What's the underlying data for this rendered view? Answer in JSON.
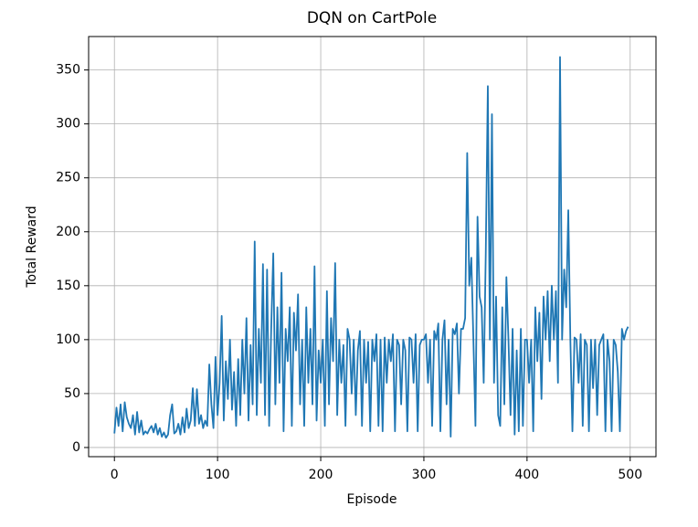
{
  "chart_data": {
    "type": "line",
    "title": "DQN on CartPole",
    "xlabel": "Episode",
    "ylabel": "Total Reward",
    "x": [
      0,
      2,
      4,
      6,
      8,
      10,
      12,
      14,
      16,
      18,
      20,
      22,
      24,
      26,
      28,
      30,
      32,
      34,
      36,
      38,
      40,
      42,
      44,
      46,
      48,
      50,
      52,
      54,
      56,
      58,
      60,
      62,
      64,
      66,
      68,
      70,
      72,
      74,
      76,
      78,
      80,
      82,
      84,
      86,
      88,
      90,
      92,
      94,
      96,
      98,
      100,
      102,
      104,
      106,
      108,
      110,
      112,
      114,
      116,
      118,
      120,
      122,
      124,
      126,
      128,
      130,
      132,
      134,
      136,
      138,
      140,
      142,
      144,
      146,
      148,
      150,
      152,
      154,
      156,
      158,
      160,
      162,
      164,
      166,
      168,
      170,
      172,
      174,
      176,
      178,
      180,
      182,
      184,
      186,
      188,
      190,
      192,
      194,
      196,
      198,
      200,
      202,
      204,
      206,
      208,
      210,
      212,
      214,
      216,
      218,
      220,
      222,
      224,
      226,
      228,
      230,
      232,
      234,
      236,
      238,
      240,
      242,
      244,
      246,
      248,
      250,
      252,
      254,
      256,
      258,
      260,
      262,
      264,
      266,
      268,
      270,
      272,
      274,
      276,
      278,
      280,
      282,
      284,
      286,
      288,
      290,
      292,
      294,
      296,
      298,
      300,
      302,
      304,
      306,
      308,
      310,
      312,
      314,
      316,
      318,
      320,
      322,
      324,
      326,
      328,
      330,
      332,
      334,
      336,
      338,
      340,
      342,
      344,
      346,
      348,
      350,
      352,
      354,
      356,
      358,
      360,
      362,
      364,
      366,
      368,
      370,
      372,
      374,
      376,
      378,
      380,
      382,
      384,
      386,
      388,
      390,
      392,
      394,
      396,
      398,
      400,
      402,
      404,
      406,
      408,
      410,
      412,
      414,
      416,
      418,
      420,
      422,
      424,
      426,
      428,
      430,
      432,
      434,
      436,
      438,
      440,
      442,
      444,
      446,
      448,
      450,
      452,
      454,
      456,
      458,
      460,
      462,
      464,
      466,
      468,
      470,
      472,
      474,
      476,
      478,
      480,
      482,
      484,
      486,
      488,
      490,
      492,
      494,
      496,
      498
    ],
    "values": [
      13,
      37,
      20,
      40,
      15,
      42,
      28,
      22,
      18,
      30,
      12,
      33,
      14,
      25,
      12,
      15,
      13,
      17,
      20,
      14,
      22,
      12,
      18,
      10,
      14,
      9,
      12,
      30,
      40,
      13,
      15,
      22,
      12,
      28,
      14,
      36,
      18,
      25,
      55,
      20,
      54,
      22,
      30,
      18,
      25,
      20,
      77,
      40,
      18,
      84,
      30,
      60,
      122,
      25,
      80,
      45,
      100,
      35,
      70,
      20,
      82,
      30,
      100,
      50,
      120,
      25,
      95,
      40,
      191,
      30,
      110,
      60,
      170,
      30,
      165,
      20,
      110,
      180,
      40,
      130,
      60,
      162,
      15,
      110,
      80,
      130,
      20,
      125,
      90,
      142,
      40,
      100,
      20,
      130,
      60,
      110,
      40,
      168,
      25,
      90,
      60,
      100,
      20,
      145,
      40,
      120,
      80,
      171,
      30,
      100,
      60,
      95,
      20,
      110,
      100,
      50,
      100,
      30,
      90,
      108,
      20,
      100,
      60,
      98,
      15,
      100,
      80,
      105,
      20,
      100,
      15,
      102,
      60,
      100,
      80,
      105,
      15,
      100,
      95,
      40,
      100,
      90,
      15,
      102,
      100,
      60,
      105,
      15,
      95,
      100,
      100,
      105,
      60,
      100,
      20,
      108,
      100,
      115,
      15,
      100,
      118,
      40,
      100,
      10,
      110,
      105,
      115,
      50,
      110,
      110,
      120,
      273,
      150,
      176,
      100,
      20,
      214,
      140,
      130,
      60,
      180,
      335,
      100,
      309,
      60,
      140,
      30,
      20,
      130,
      40,
      158,
      100,
      30,
      110,
      12,
      90,
      15,
      110,
      20,
      100,
      100,
      60,
      100,
      15,
      130,
      80,
      125,
      45,
      140,
      100,
      145,
      80,
      150,
      100,
      145,
      60,
      362,
      100,
      165,
      130,
      220,
      100,
      15,
      102,
      100,
      60,
      105,
      20,
      100,
      95,
      15,
      100,
      55,
      100,
      30,
      95,
      100,
      105,
      15,
      100,
      80,
      15,
      100,
      95,
      70,
      15,
      110,
      100,
      108,
      112
    ],
    "color": "#1f77b4",
    "xlim": [
      -25,
      525
    ],
    "ylim": [
      -8.5,
      381
    ],
    "xticks": [
      0,
      100,
      200,
      300,
      400,
      500
    ],
    "yticks": [
      0,
      50,
      100,
      150,
      200,
      250,
      300,
      350
    ],
    "grid": true
  }
}
